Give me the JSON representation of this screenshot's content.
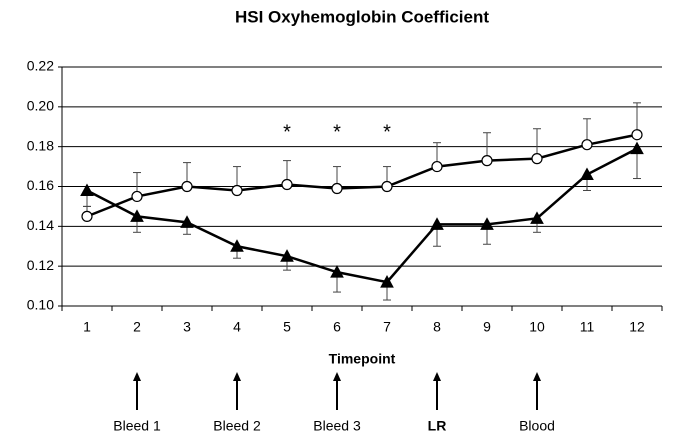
{
  "chart_data": {
    "type": "line",
    "title": "HSI Oxyhemoglobin Coefficient",
    "x_label": "Timepoint",
    "categories": [
      "1",
      "2",
      "3",
      "4",
      "5",
      "6",
      "7",
      "8",
      "9",
      "10",
      "11",
      "12"
    ],
    "series": [
      {
        "color": "#000000",
        "marker": "circle",
        "marker_fill": "#ffffff",
        "error_direction": "up",
        "values": [
          0.145,
          0.155,
          0.16,
          0.158,
          0.161,
          0.159,
          0.16,
          0.17,
          0.173,
          0.174,
          0.181,
          0.186
        ],
        "errors": [
          0.005,
          0.012,
          0.012,
          0.012,
          0.012,
          0.011,
          0.01,
          0.012,
          0.014,
          0.015,
          0.013,
          0.016
        ]
      },
      {
        "color": "#000000",
        "marker": "triangle",
        "marker_fill": "#000000",
        "error_direction": "down",
        "values": [
          0.158,
          0.145,
          0.142,
          0.13,
          0.125,
          0.117,
          0.112,
          0.141,
          0.141,
          0.144,
          0.166,
          0.179
        ],
        "errors": [
          0.008,
          0.008,
          0.006,
          0.006,
          0.007,
          0.01,
          0.009,
          0.011,
          0.01,
          0.007,
          0.008,
          0.015
        ]
      }
    ],
    "ylim": [
      0.1,
      0.22
    ],
    "yticks": [
      {
        "value": 0.1,
        "label": "0.10"
      },
      0.12,
      0.14,
      0.16,
      0.18,
      {
        "value": 0.2,
        "label": "0.20"
      },
      0.22
    ],
    "grid": true,
    "significance_marks": [
      {
        "x": 5,
        "label": "*"
      },
      {
        "x": 6,
        "label": "*"
      },
      {
        "x": 7,
        "label": "*"
      }
    ],
    "events": [
      {
        "x": 2,
        "label": "Bleed 1"
      },
      {
        "x": 4,
        "label": "Bleed 2"
      },
      {
        "x": 6,
        "label": "Bleed 3"
      },
      {
        "x": 8,
        "label": "LR"
      },
      {
        "x": 10,
        "label": "Blood"
      }
    ]
  }
}
